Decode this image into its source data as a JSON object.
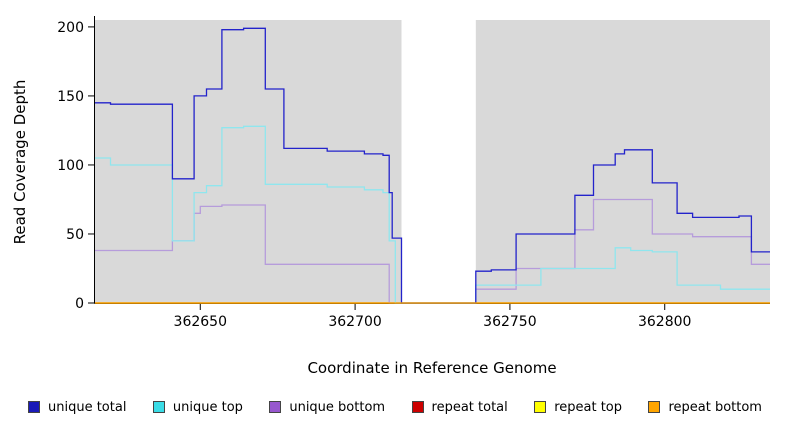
{
  "chart_data": {
    "type": "line",
    "line_style": "step",
    "title": "",
    "xlabel": "Coordinate in Reference Genome",
    "ylabel": "Read Coverage Depth",
    "xlim": [
      362616,
      362834
    ],
    "ylim": [
      0,
      205
    ],
    "xticks": [
      362650,
      362700,
      362750,
      362800
    ],
    "yticks": [
      0,
      50,
      100,
      150,
      200
    ],
    "grid": false,
    "plot_bg": "#D9D9D9",
    "gap_region": [
      362715,
      362739
    ],
    "coverage_regions": [
      [
        362616,
        362715
      ],
      [
        362739,
        362834
      ]
    ],
    "series": [
      {
        "name": "repeat total",
        "color": "#CC0000",
        "points": [
          [
            362616,
            0
          ],
          [
            362834,
            0
          ]
        ]
      },
      {
        "name": "repeat top",
        "color": "#FFFF00",
        "points": [
          [
            362616,
            0
          ],
          [
            362834,
            0
          ]
        ]
      },
      {
        "name": "unique bottom",
        "color": "#B69CDB",
        "points": [
          [
            362616,
            38
          ],
          [
            362641,
            38
          ],
          [
            362641,
            45
          ],
          [
            362648,
            45
          ],
          [
            362648,
            65
          ],
          [
            362650,
            65
          ],
          [
            362650,
            70
          ],
          [
            362657,
            70
          ],
          [
            362657,
            71
          ],
          [
            362671,
            71
          ],
          [
            362671,
            28
          ],
          [
            362711,
            28
          ],
          [
            362711,
            0
          ],
          [
            362715,
            0
          ],
          [
            362739,
            0
          ],
          [
            362739,
            10
          ],
          [
            362752,
            10
          ],
          [
            362752,
            25
          ],
          [
            362771,
            25
          ],
          [
            362771,
            53
          ],
          [
            362777,
            53
          ],
          [
            362777,
            75
          ],
          [
            362796,
            75
          ],
          [
            362796,
            50
          ],
          [
            362809,
            50
          ],
          [
            362809,
            48
          ],
          [
            362828,
            48
          ],
          [
            362828,
            28
          ],
          [
            362834,
            28
          ]
        ]
      },
      {
        "name": "unique top",
        "color": "#8FE6EE",
        "points": [
          [
            362616,
            105
          ],
          [
            362621,
            105
          ],
          [
            362621,
            100
          ],
          [
            362641,
            100
          ],
          [
            362641,
            45
          ],
          [
            362648,
            45
          ],
          [
            362648,
            80
          ],
          [
            362652,
            80
          ],
          [
            362652,
            85
          ],
          [
            362657,
            85
          ],
          [
            362657,
            127
          ],
          [
            362664,
            127
          ],
          [
            362664,
            128
          ],
          [
            362671,
            128
          ],
          [
            362671,
            86
          ],
          [
            362691,
            86
          ],
          [
            362691,
            84
          ],
          [
            362703,
            84
          ],
          [
            362703,
            82
          ],
          [
            362709,
            82
          ],
          [
            362709,
            80
          ],
          [
            362711,
            80
          ],
          [
            362711,
            45
          ],
          [
            362713,
            45
          ],
          [
            362713,
            0
          ],
          [
            362715,
            0
          ],
          [
            362739,
            0
          ],
          [
            362739,
            13
          ],
          [
            362760,
            13
          ],
          [
            362760,
            25
          ],
          [
            362784,
            25
          ],
          [
            362784,
            40
          ],
          [
            362789,
            40
          ],
          [
            362789,
            38
          ],
          [
            362796,
            38
          ],
          [
            362796,
            37
          ],
          [
            362804,
            37
          ],
          [
            362804,
            13
          ],
          [
            362818,
            13
          ],
          [
            362818,
            10
          ],
          [
            362834,
            10
          ]
        ]
      },
      {
        "name": "unique total",
        "color": "#2323CB",
        "points": [
          [
            362616,
            145
          ],
          [
            362621,
            145
          ],
          [
            362621,
            144
          ],
          [
            362641,
            144
          ],
          [
            362641,
            90
          ],
          [
            362648,
            90
          ],
          [
            362648,
            150
          ],
          [
            362652,
            150
          ],
          [
            362652,
            155
          ],
          [
            362657,
            155
          ],
          [
            362657,
            198
          ],
          [
            362664,
            198
          ],
          [
            362664,
            199
          ],
          [
            362671,
            199
          ],
          [
            362671,
            155
          ],
          [
            362677,
            155
          ],
          [
            362677,
            112
          ],
          [
            362691,
            112
          ],
          [
            362691,
            110
          ],
          [
            362703,
            110
          ],
          [
            362703,
            108
          ],
          [
            362709,
            108
          ],
          [
            362709,
            107
          ],
          [
            362711,
            107
          ],
          [
            362711,
            80
          ],
          [
            362712,
            80
          ],
          [
            362712,
            47
          ],
          [
            362715,
            47
          ],
          [
            362715,
            0
          ],
          [
            362739,
            0
          ],
          [
            362739,
            23
          ],
          [
            362744,
            23
          ],
          [
            362744,
            24
          ],
          [
            362752,
            24
          ],
          [
            362752,
            50
          ],
          [
            362771,
            50
          ],
          [
            362771,
            78
          ],
          [
            362777,
            78
          ],
          [
            362777,
            100
          ],
          [
            362784,
            100
          ],
          [
            362784,
            108
          ],
          [
            362787,
            108
          ],
          [
            362787,
            111
          ],
          [
            362796,
            111
          ],
          [
            362796,
            87
          ],
          [
            362804,
            87
          ],
          [
            362804,
            65
          ],
          [
            362809,
            65
          ],
          [
            362809,
            62
          ],
          [
            362824,
            62
          ],
          [
            362824,
            63
          ],
          [
            362828,
            63
          ],
          [
            362828,
            37
          ],
          [
            362834,
            37
          ]
        ]
      },
      {
        "name": "repeat bottom",
        "color": "#FFA500",
        "points": [
          [
            362616,
            0
          ],
          [
            362834,
            0
          ]
        ]
      }
    ],
    "legend": [
      {
        "label": "unique total",
        "color": "#1A1AB8"
      },
      {
        "label": "unique top",
        "color": "#3ADCE6"
      },
      {
        "label": "unique bottom",
        "color": "#9757CE"
      },
      {
        "label": "repeat total",
        "color": "#CC0000"
      },
      {
        "label": "repeat top",
        "color": "#FFFF00"
      },
      {
        "label": "repeat bottom",
        "color": "#FFA500"
      }
    ],
    "legend_position": "bottom"
  }
}
